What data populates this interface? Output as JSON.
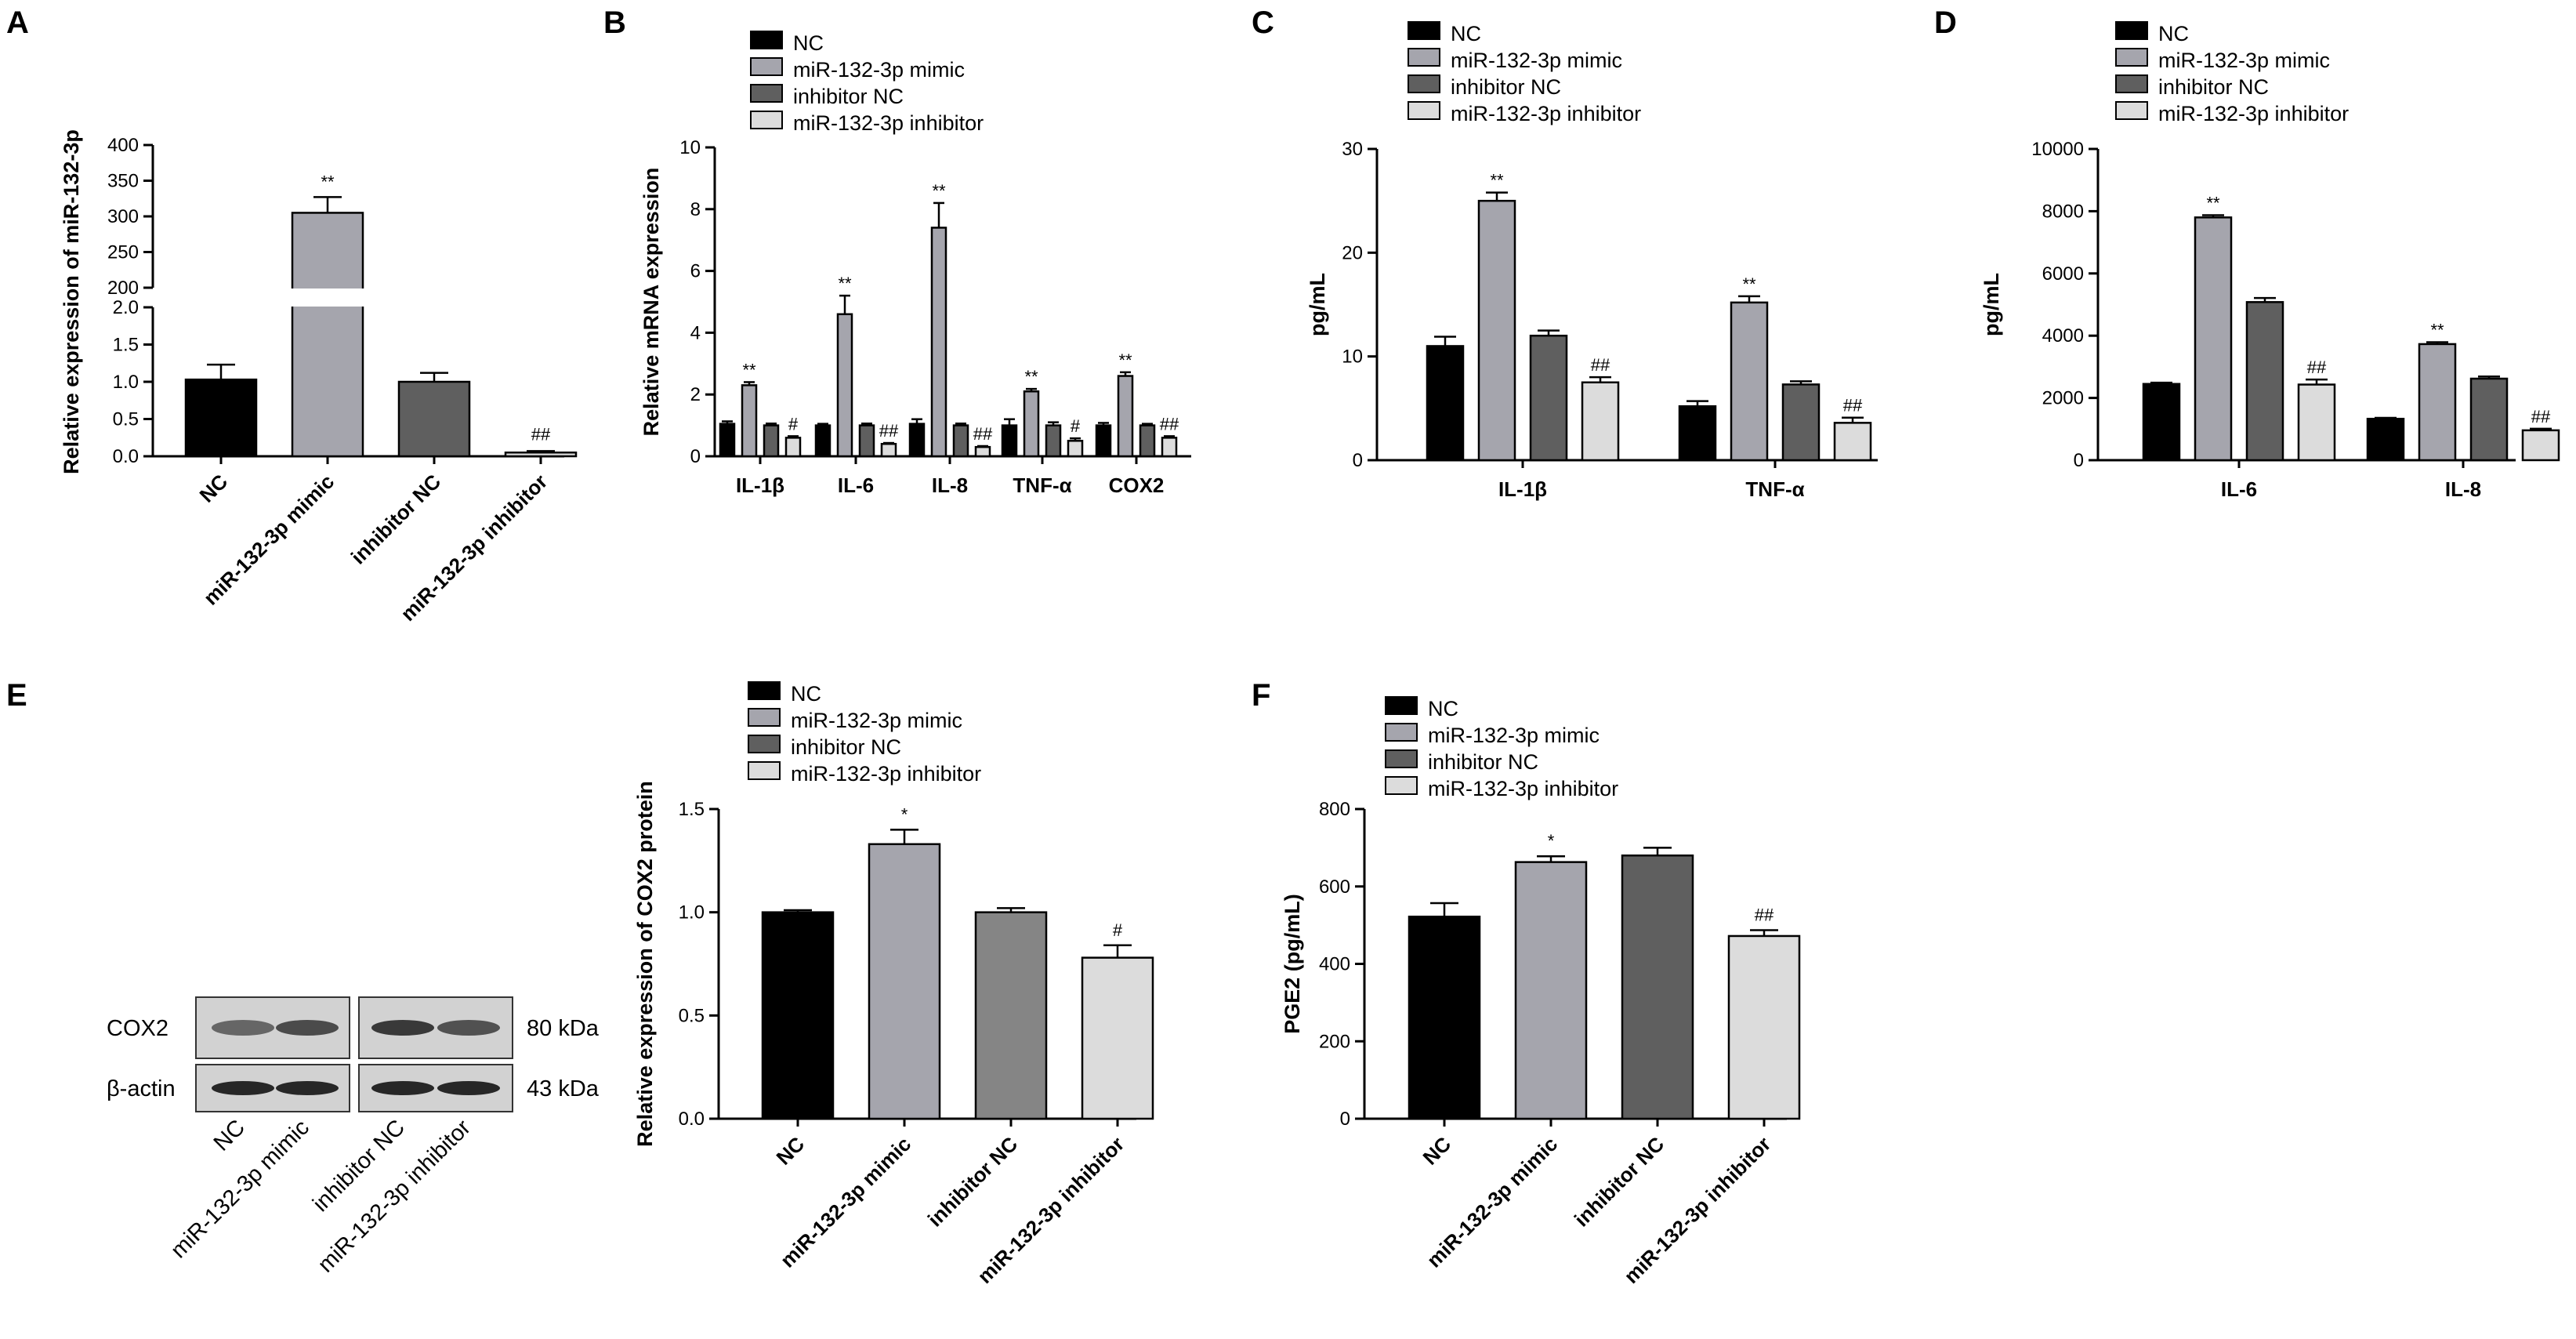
{
  "colors": {
    "NC": "#000000",
    "mimic": "#a5a5ad",
    "inhibitor_nc": "#5f5f5f",
    "inhibitor": "#dcdcdc"
  },
  "legend": [
    "NC",
    "miR-132-3p mimic",
    "inhibitor NC",
    "miR-132-3p inhibitor"
  ],
  "chart_data": [
    {
      "panel": "A",
      "type": "bar",
      "ylabel": "Relative expression of miR-132-3p",
      "categories": [
        "NC",
        "miR-132-3p mimic",
        "inhibitor NC",
        "miR-132-3p inhibitor"
      ],
      "values": [
        1.03,
        305,
        1.0,
        0.05
      ],
      "errors": [
        0.2,
        22,
        0.12,
        0.02
      ],
      "annotations": [
        "",
        "**",
        "",
        "##"
      ],
      "axis_break": {
        "lower_range": [
          0,
          2.0
        ],
        "upper_range": [
          200,
          400
        ]
      },
      "lower_ticks": [
        "0.0",
        "0.5",
        "1.0",
        "1.5",
        "2.0"
      ],
      "upper_ticks": [
        "200",
        "250",
        "300",
        "350",
        "400"
      ]
    },
    {
      "panel": "B",
      "type": "bar",
      "ylabel": "Relative mRNA expression",
      "categories": [
        "IL-1β",
        "IL-6",
        "IL-8",
        "TNF-α",
        "COX2"
      ],
      "ylim": [
        0,
        10
      ],
      "yticks": [
        "0",
        "2",
        "4",
        "6",
        "8",
        "10"
      ],
      "series": [
        {
          "name": "NC",
          "values": [
            1.05,
            1.0,
            1.05,
            1.0,
            1.0
          ],
          "errors": [
            0.08,
            0.05,
            0.15,
            0.2,
            0.08
          ]
        },
        {
          "name": "miR-132-3p mimic",
          "values": [
            2.3,
            4.6,
            7.4,
            2.1,
            2.6
          ],
          "errors": [
            0.1,
            0.6,
            0.8,
            0.08,
            0.12
          ]
        },
        {
          "name": "inhibitor NC",
          "values": [
            1.0,
            1.0,
            1.0,
            1.0,
            1.0
          ],
          "errors": [
            0.06,
            0.06,
            0.06,
            0.1,
            0.05
          ]
        },
        {
          "name": "miR-132-3p inhibitor",
          "values": [
            0.6,
            0.4,
            0.3,
            0.5,
            0.6
          ],
          "errors": [
            0.05,
            0.03,
            0.03,
            0.08,
            0.05
          ]
        }
      ],
      "annotations": [
        [
          "",
          "**",
          "",
          "#"
        ],
        [
          "",
          "**",
          "",
          "##"
        ],
        [
          "",
          "**",
          "",
          "##"
        ],
        [
          "",
          "**",
          "",
          "#"
        ],
        [
          "",
          "**",
          "",
          "##"
        ]
      ]
    },
    {
      "panel": "C",
      "type": "bar",
      "ylabel": "pg/mL",
      "categories": [
        "IL-1β",
        "TNF-α"
      ],
      "ylim": [
        0,
        30
      ],
      "yticks": [
        "0",
        "10",
        "20",
        "30"
      ],
      "series": [
        {
          "name": "NC",
          "values": [
            11.0,
            5.2
          ],
          "errors": [
            0.9,
            0.5
          ]
        },
        {
          "name": "miR-132-3p mimic",
          "values": [
            25.0,
            15.2
          ],
          "errors": [
            0.8,
            0.6
          ]
        },
        {
          "name": "inhibitor NC",
          "values": [
            12.0,
            7.3
          ],
          "errors": [
            0.5,
            0.3
          ]
        },
        {
          "name": "miR-132-3p inhibitor",
          "values": [
            7.5,
            3.6
          ],
          "errors": [
            0.5,
            0.5
          ]
        }
      ],
      "annotations": [
        [
          "",
          "**",
          "",
          "##"
        ],
        [
          "",
          "**",
          "",
          "##"
        ]
      ]
    },
    {
      "panel": "D",
      "type": "bar",
      "ylabel": "pg/mL",
      "categories": [
        "IL-6",
        "IL-8"
      ],
      "ylim": [
        0,
        10000
      ],
      "yticks": [
        "0",
        "2000",
        "4000",
        "6000",
        "8000",
        "10000"
      ],
      "series": [
        {
          "name": "NC",
          "values": [
            2450,
            1330
          ],
          "errors": [
            40,
            30
          ]
        },
        {
          "name": "miR-132-3p mimic",
          "values": [
            7800,
            3730
          ],
          "errors": [
            70,
            60
          ]
        },
        {
          "name": "inhibitor NC",
          "values": [
            5080,
            2620
          ],
          "errors": [
            130,
            70
          ]
        },
        {
          "name": "miR-132-3p inhibitor",
          "values": [
            2430,
            960
          ],
          "errors": [
            160,
            50
          ]
        }
      ],
      "annotations": [
        [
          "",
          "**",
          "",
          "##"
        ],
        [
          "",
          "**",
          "",
          "##"
        ]
      ]
    },
    {
      "panel": "E",
      "type": "bar",
      "ylabel": "Relative expression of COX2 protein",
      "categories": [
        "NC",
        "miR-132-3p mimic",
        "inhibitor NC",
        "miR-132-3p inhibitor"
      ],
      "values": [
        1.0,
        1.33,
        1.0,
        0.78
      ],
      "errors": [
        0.01,
        0.07,
        0.02,
        0.06
      ],
      "annotations": [
        "",
        "*",
        "",
        "#"
      ],
      "ylim": [
        0,
        1.5
      ],
      "yticks": [
        "0.0",
        "0.5",
        "1.0",
        "1.5"
      ]
    },
    {
      "panel": "F",
      "type": "bar",
      "ylabel": "PGE2 (pg/mL)",
      "categories": [
        "NC",
        "miR-132-3p mimic",
        "inhibitor NC",
        "miR-132-3p inhibitor"
      ],
      "values": [
        522,
        663,
        680,
        472
      ],
      "errors": [
        35,
        15,
        20,
        15
      ],
      "annotations": [
        "",
        "*",
        "",
        "##"
      ],
      "ylim": [
        0,
        800
      ],
      "yticks": [
        "0",
        "200",
        "400",
        "600",
        "800"
      ]
    }
  ],
  "western_blot": {
    "panel": "E",
    "rows": [
      {
        "label": "COX2",
        "kda": "80 kDa",
        "intensity": [
          0.6,
          0.75,
          0.85,
          0.72
        ]
      },
      {
        "label": "β-actin",
        "kda": "43 kDa",
        "intensity": [
          0.95,
          0.95,
          0.95,
          0.95
        ]
      }
    ],
    "lanes": [
      "NC",
      "miR-132-3p mimic",
      "inhibitor NC",
      "miR-132-3p inhibitor"
    ]
  }
}
